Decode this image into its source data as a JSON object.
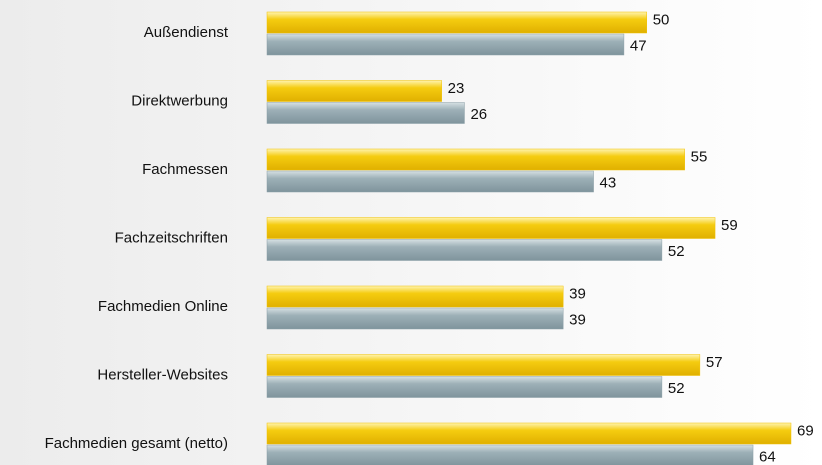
{
  "chart_data": {
    "type": "bar",
    "categories": [
      "Außendienst",
      "Direktwerbung",
      "Fachmessen",
      "Fachzeitschriften",
      "Fachmedien Online",
      "Hersteller-Websites",
      "Fachmedien gesamt (netto)"
    ],
    "series": [
      {
        "color": "#f0c000",
        "values": [
          50,
          23,
          55,
          59,
          39,
          57,
          69
        ]
      },
      {
        "color": "#8a9ea6",
        "values": [
          47,
          26,
          43,
          52,
          39,
          52,
          64
        ]
      }
    ]
  }
}
